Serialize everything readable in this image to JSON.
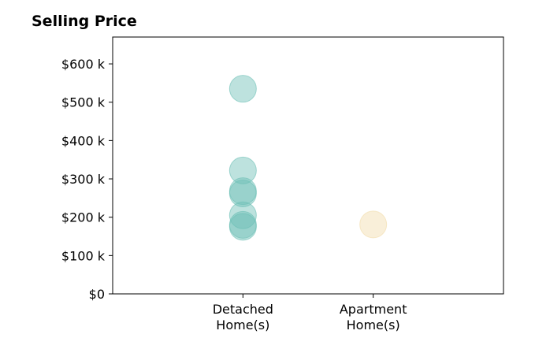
{
  "chart_data": {
    "type": "scatter",
    "title": "Selling Price",
    "categories": [
      "Detached\nHome(s)",
      "Apartment\nHome(s)"
    ],
    "y_tick_labels": [
      "$0",
      "$100 k",
      "$200 k",
      "$300 k",
      "$400 k",
      "$500 k",
      "$600 k"
    ],
    "y_ticks": [
      0,
      100000,
      200000,
      300000,
      400000,
      500000,
      600000
    ],
    "ylim": [
      0,
      670000
    ],
    "x_range": [
      -1,
      2
    ],
    "grid": false,
    "series": [
      {
        "category": "Detached\nHome(s)",
        "color": "#6dbfb5",
        "values": [
          535000,
          322000,
          268000,
          262000,
          205000,
          180000,
          175000
        ]
      },
      {
        "category": "Apartment\nHome(s)",
        "color": "#f2dcaa",
        "values": [
          181000
        ]
      }
    ]
  }
}
